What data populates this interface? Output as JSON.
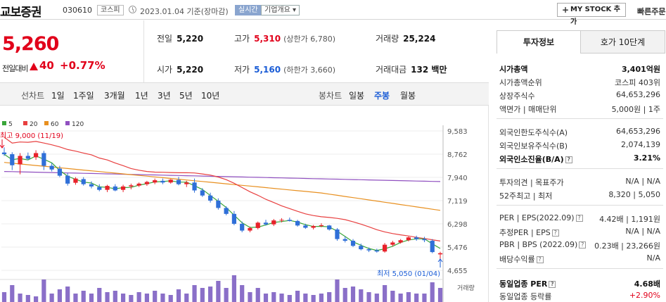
{
  "header": {
    "stock_name": "교보증권",
    "stock_code": "030610",
    "market_tag": "코스피",
    "date_text": "2023.01.04 기준(장마감)",
    "realtime_tag": "실시간",
    "overview_tag": "기업개요 ▾",
    "mystock_label": "MY STOCK 추가",
    "quick_link": "빠른주문"
  },
  "price": {
    "current": "5,260",
    "change_label": "전일대비",
    "change_amount": "40",
    "change_rate": "+0.77%"
  },
  "quotes": {
    "prev_label": "전일",
    "prev": "5,220",
    "high_label": "고가",
    "high": "5,310",
    "upper_limit": "(상한가 6,780)",
    "volume_label": "거래량",
    "volume": "25,224",
    "open_label": "시가",
    "open": "5,220",
    "low_label": "저가",
    "low": "5,160",
    "lower_limit": "(하한가 3,660)",
    "amount_label": "거래대금",
    "amount": "132 백만"
  },
  "period_bar": {
    "line_label": "선차트",
    "line_items": [
      "1일",
      "1주일",
      "3개월",
      "1년",
      "3년",
      "5년",
      "10년"
    ],
    "candle_label": "봉차트",
    "candle_items": [
      "일봉",
      "주봉",
      "월봉"
    ],
    "active_candle": "주봉"
  },
  "chart_data": {
    "type": "candlestick",
    "legend": [
      "5",
      "20",
      "60",
      "120"
    ],
    "legend_colors": [
      "#3aa63a",
      "#e84040",
      "#e89020",
      "#9050c0"
    ],
    "y_ticks": [
      "9,583",
      "8,762",
      "7,940",
      "7,119",
      "6,298",
      "5,476",
      "4,655"
    ],
    "ylim": [
      4655,
      9583
    ],
    "high_annotation": "최고 9,000 (11/19)",
    "low_annotation": "최저 5,050 (01/04)",
    "volume_label": "거래량",
    "candles": [
      {
        "o": 8820,
        "h": 9000,
        "l": 8700,
        "c": 8760
      },
      {
        "o": 8760,
        "h": 8830,
        "l": 8200,
        "c": 8370
      },
      {
        "o": 8400,
        "h": 8800,
        "l": 8050,
        "c": 8700
      },
      {
        "o": 8700,
        "h": 8820,
        "l": 8550,
        "c": 8600
      },
      {
        "o": 8650,
        "h": 8900,
        "l": 8560,
        "c": 8800
      },
      {
        "o": 8800,
        "h": 8880,
        "l": 8200,
        "c": 8350
      },
      {
        "o": 8350,
        "h": 8450,
        "l": 8150,
        "c": 8220
      },
      {
        "o": 8250,
        "h": 8350,
        "l": 7950,
        "c": 8000
      },
      {
        "o": 8000,
        "h": 8100,
        "l": 7650,
        "c": 7720
      },
      {
        "o": 7750,
        "h": 7950,
        "l": 7680,
        "c": 7900
      },
      {
        "o": 7880,
        "h": 7950,
        "l": 7650,
        "c": 7700
      },
      {
        "o": 7700,
        "h": 7800,
        "l": 7550,
        "c": 7620
      },
      {
        "o": 7600,
        "h": 7700,
        "l": 7450,
        "c": 7500
      },
      {
        "o": 7500,
        "h": 7680,
        "l": 7420,
        "c": 7640
      },
      {
        "o": 7620,
        "h": 7700,
        "l": 7450,
        "c": 7480
      },
      {
        "o": 7500,
        "h": 7680,
        "l": 7420,
        "c": 7620
      },
      {
        "o": 7620,
        "h": 7720,
        "l": 7520,
        "c": 7660
      },
      {
        "o": 7650,
        "h": 7760,
        "l": 7600,
        "c": 7720
      },
      {
        "o": 7700,
        "h": 7820,
        "l": 7640,
        "c": 7780
      },
      {
        "o": 7760,
        "h": 7900,
        "l": 7700,
        "c": 7840
      },
      {
        "o": 7820,
        "h": 7900,
        "l": 7700,
        "c": 7760
      },
      {
        "o": 7760,
        "h": 7880,
        "l": 7720,
        "c": 7860
      },
      {
        "o": 7850,
        "h": 7960,
        "l": 7660,
        "c": 7700
      },
      {
        "o": 7700,
        "h": 7820,
        "l": 7600,
        "c": 7760
      },
      {
        "o": 7760,
        "h": 7900,
        "l": 7400,
        "c": 7480
      },
      {
        "o": 7480,
        "h": 7560,
        "l": 7250,
        "c": 7300
      },
      {
        "o": 7300,
        "h": 7400,
        "l": 7050,
        "c": 7120
      },
      {
        "o": 7120,
        "h": 7200,
        "l": 6800,
        "c": 6860
      },
      {
        "o": 6860,
        "h": 6920,
        "l": 6600,
        "c": 6650
      },
      {
        "o": 6650,
        "h": 6750,
        "l": 6250,
        "c": 6300
      },
      {
        "o": 6300,
        "h": 6380,
        "l": 6000,
        "c": 6060
      },
      {
        "o": 6060,
        "h": 6200,
        "l": 6000,
        "c": 6150
      },
      {
        "o": 6150,
        "h": 6380,
        "l": 6100,
        "c": 6340
      },
      {
        "o": 6340,
        "h": 6440,
        "l": 6240,
        "c": 6280
      },
      {
        "o": 6280,
        "h": 6470,
        "l": 6220,
        "c": 6420
      },
      {
        "o": 6420,
        "h": 6500,
        "l": 6350,
        "c": 6440
      },
      {
        "o": 6440,
        "h": 6520,
        "l": 6380,
        "c": 6400
      },
      {
        "o": 6400,
        "h": 6440,
        "l": 6200,
        "c": 6240
      },
      {
        "o": 6240,
        "h": 6300,
        "l": 6120,
        "c": 6160
      },
      {
        "o": 6160,
        "h": 6260,
        "l": 6100,
        "c": 6220
      },
      {
        "o": 6220,
        "h": 6320,
        "l": 6180,
        "c": 6250
      },
      {
        "o": 6240,
        "h": 6260,
        "l": 6060,
        "c": 6100
      },
      {
        "o": 6100,
        "h": 6150,
        "l": 5700,
        "c": 5760
      },
      {
        "o": 5760,
        "h": 5850,
        "l": 5640,
        "c": 5700
      },
      {
        "o": 5700,
        "h": 5760,
        "l": 5480,
        "c": 5520
      },
      {
        "o": 5520,
        "h": 5600,
        "l": 5360,
        "c": 5400
      },
      {
        "o": 5400,
        "h": 5460,
        "l": 5300,
        "c": 5360
      },
      {
        "o": 5360,
        "h": 5420,
        "l": 5280,
        "c": 5320
      },
      {
        "o": 5320,
        "h": 5620,
        "l": 5280,
        "c": 5560
      },
      {
        "o": 5560,
        "h": 5700,
        "l": 5500,
        "c": 5640
      },
      {
        "o": 5640,
        "h": 5760,
        "l": 5600,
        "c": 5720
      },
      {
        "o": 5720,
        "h": 5850,
        "l": 5680,
        "c": 5820
      },
      {
        "o": 5820,
        "h": 5880,
        "l": 5700,
        "c": 5760
      },
      {
        "o": 5760,
        "h": 5840,
        "l": 5650,
        "c": 5720
      },
      {
        "o": 5700,
        "h": 5760,
        "l": 5260,
        "c": 5300
      },
      {
        "o": 5220,
        "h": 5310,
        "l": 5050,
        "c": 5260
      }
    ],
    "volumes": [
      0.35,
      0.6,
      0.3,
      0.25,
      0.2,
      0.8,
      0.3,
      0.45,
      0.55,
      0.3,
      0.4,
      0.3,
      0.5,
      0.35,
      0.4,
      0.3,
      0.25,
      0.35,
      0.3,
      0.4,
      0.3,
      0.25,
      0.45,
      0.3,
      0.6,
      0.5,
      0.55,
      0.75,
      0.5,
      0.95,
      0.6,
      0.35,
      0.5,
      0.3,
      0.35,
      0.3,
      0.25,
      0.4,
      0.3,
      0.25,
      0.3,
      0.35,
      0.8,
      0.5,
      0.55,
      0.45,
      0.35,
      0.3,
      0.6,
      0.4,
      0.3,
      0.35,
      0.3,
      0.3,
      0.7,
      0.5
    ]
  },
  "side_panel": {
    "tab_invest": "투자정보",
    "tab_quote10": "호가 10단계",
    "market_cap_label": "시가총액",
    "market_cap": "3,401억원",
    "rank_label": "시가총액순위",
    "rank": "코스피 403위",
    "shares_label": "상장주식수",
    "shares": "64,653,296",
    "face_label": "액면가 | 매매단위",
    "face": "5,000원 | 1주",
    "foreign_limit_label": "외국인한도주식수(A)",
    "foreign_limit": "64,653,296",
    "foreign_hold_label": "외국인보유주식수(B)",
    "foreign_hold": "2,074,139",
    "foreign_ratio_label": "외국인소진율(B/A)",
    "foreign_ratio": "3.21%",
    "opinion_label": "투자의견 | 목표주가",
    "opinion": "N/A | N/A",
    "week52_label": "52주최고 | 최저",
    "week52": "8,320 | 5,050",
    "per_label": "PER | EPS(2022.09)",
    "per": "4.42배 | 1,191원",
    "est_per_label": "추정PER | EPS",
    "est_per": "N/A | N/A",
    "pbr_label": "PBR | BPS (2022.09)",
    "pbr": "0.23배 | 23,266원",
    "div_label": "배당수익률",
    "div": "N/A",
    "sector_per_label": "동일업종 PER",
    "sector_per": "4.68배",
    "sector_rate_label": "동일업종 등락률",
    "sector_rate": "+2.90%"
  }
}
